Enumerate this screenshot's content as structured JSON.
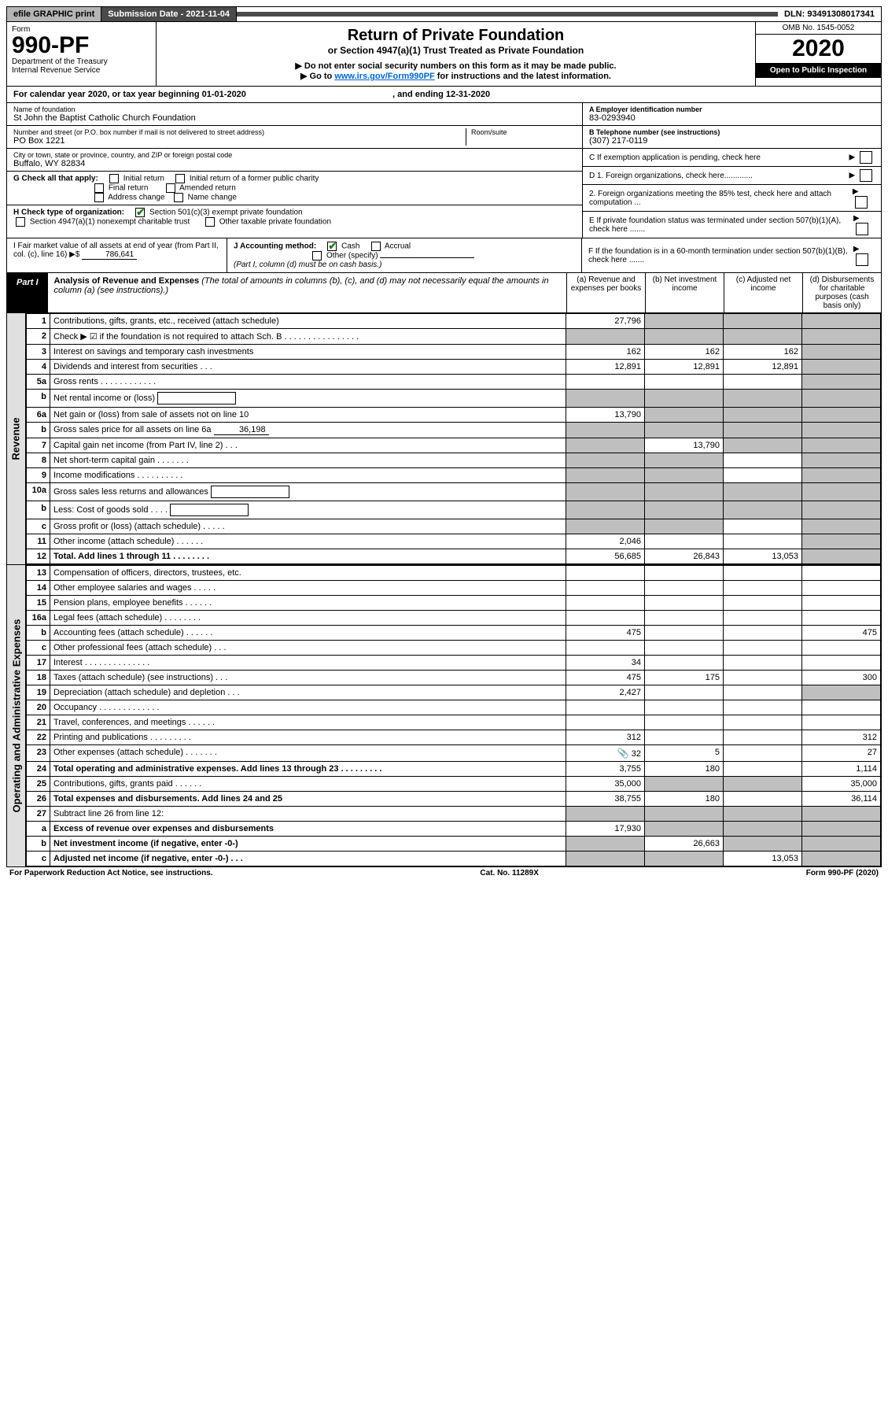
{
  "top": {
    "efile": "efile GRAPHIC print",
    "sub_date_label": "Submission Date - 2021-11-04",
    "dln": "DLN: 93491308017341"
  },
  "header": {
    "form_word": "Form",
    "form_no": "990-PF",
    "dept": "Department of the Treasury",
    "irs": "Internal Revenue Service",
    "title": "Return of Private Foundation",
    "subtitle": "or Section 4947(a)(1) Trust Treated as Private Foundation",
    "note1": "▶ Do not enter social security numbers on this form as it may be made public.",
    "note2_pre": "▶ Go to ",
    "note2_link": "www.irs.gov/Form990PF",
    "note2_post": " for instructions and the latest information.",
    "omb": "OMB No. 1545-0052",
    "year": "2020",
    "open": "Open to Public Inspection"
  },
  "cal": {
    "text": "For calendar year 2020, or tax year beginning 01-01-2020",
    "ending": ", and ending 12-31-2020"
  },
  "meta": {
    "name_label": "Name of foundation",
    "name": "St John the Baptist Catholic Church Foundation",
    "addr_label": "Number and street (or P.O. box number if mail is not delivered to street address)",
    "addr": "PO Box 1221",
    "room_label": "Room/suite",
    "city_label": "City or town, state or province, country, and ZIP or foreign postal code",
    "city": "Buffalo, WY  82834",
    "ein_label": "A Employer identification number",
    "ein": "83-0293940",
    "tel_label": "B Telephone number (see instructions)",
    "tel": "(307) 217-0119",
    "c_label": "C If exemption application is pending, check here",
    "d1": "D 1. Foreign organizations, check here.............",
    "d2": "2. Foreign organizations meeting the 85% test, check here and attach computation ...",
    "e": "E  If private foundation status was terminated under section 507(b)(1)(A), check here .......",
    "f": "F  If the foundation is in a 60-month termination under section 507(b)(1)(B), check here .......",
    "g_label": "G Check all that apply:",
    "g_opts": [
      "Initial return",
      "Initial return of a former public charity",
      "Final return",
      "Amended return",
      "Address change",
      "Name change"
    ],
    "h_label": "H Check type of organization:",
    "h_opts": [
      "Section 501(c)(3) exempt private foundation",
      "Section 4947(a)(1) nonexempt charitable trust",
      "Other taxable private foundation"
    ],
    "i_label": "I Fair market value of all assets at end of year (from Part II, col. (c), line 16) ▶$",
    "i_val": "786,641",
    "j_label": "J Accounting method:",
    "j_cash": "Cash",
    "j_accr": "Accrual",
    "j_other": "Other (specify)",
    "j_note": "(Part I, column (d) must be on cash basis.)"
  },
  "part1": {
    "label": "Part I",
    "title_bold": "Analysis of Revenue and Expenses",
    "title_rest": " (The total of amounts in columns (b), (c), and (d) may not necessarily equal the amounts in column (a) (see instructions).)",
    "cols": [
      "(a)  Revenue and expenses per books",
      "(b)  Net investment income",
      "(c)  Adjusted net income",
      "(d)  Disbursements for charitable purposes (cash basis only)"
    ],
    "side_rev": "Revenue",
    "side_exp": "Operating and Administrative Expenses",
    "rows_rev": [
      {
        "ln": "1",
        "desc": "Contributions, gifts, grants, etc., received (attach schedule)",
        "a": "27,796",
        "b": "",
        "c": "",
        "d": "",
        "shade": [
          "b",
          "c",
          "d"
        ]
      },
      {
        "ln": "2",
        "desc": "Check ▶ ☑ if the foundation is not required to attach Sch. B    .  .  .  .  .  .  .  .  .  .  .  .  .  .  .  .",
        "a": "",
        "b": "",
        "c": "",
        "d": "",
        "shade": [
          "a",
          "b",
          "c",
          "d"
        ]
      },
      {
        "ln": "3",
        "desc": "Interest on savings and temporary cash investments",
        "a": "162",
        "b": "162",
        "c": "162",
        "d": "",
        "shade": [
          "d"
        ]
      },
      {
        "ln": "4",
        "desc": "Dividends and interest from securities    .   .   .",
        "a": "12,891",
        "b": "12,891",
        "c": "12,891",
        "d": "",
        "shade": [
          "d"
        ]
      },
      {
        "ln": "5a",
        "desc": "Gross rents    .   .   .   .   .   .   .   .   .   .   .   .",
        "a": "",
        "b": "",
        "c": "",
        "d": "",
        "shade": [
          "d"
        ]
      },
      {
        "ln": "b",
        "desc": "Net rental income or (loss)",
        "a": "",
        "b": "",
        "c": "",
        "d": "",
        "shade": [
          "a",
          "b",
          "c",
          "d"
        ],
        "box": true
      },
      {
        "ln": "6a",
        "desc": "Net gain or (loss) from sale of assets not on line 10",
        "a": "13,790",
        "b": "",
        "c": "",
        "d": "",
        "shade": [
          "b",
          "c",
          "d"
        ]
      },
      {
        "ln": "b",
        "desc": "Gross sales price for all assets on line 6a",
        "a": "",
        "b": "",
        "c": "",
        "d": "",
        "shade": [
          "a",
          "b",
          "c",
          "d"
        ],
        "inline_val": "36,198"
      },
      {
        "ln": "7",
        "desc": "Capital gain net income (from Part IV, line 2)   .   .   .",
        "a": "",
        "b": "13,790",
        "c": "",
        "d": "",
        "shade": [
          "a",
          "c",
          "d"
        ]
      },
      {
        "ln": "8",
        "desc": "Net short-term capital gain   .   .   .   .   .   .   .",
        "a": "",
        "b": "",
        "c": "",
        "d": "",
        "shade": [
          "a",
          "b",
          "d"
        ]
      },
      {
        "ln": "9",
        "desc": "Income modifications  .   .   .   .   .   .   .   .   .   .",
        "a": "",
        "b": "",
        "c": "",
        "d": "",
        "shade": [
          "a",
          "b",
          "d"
        ]
      },
      {
        "ln": "10a",
        "desc": "Gross sales less returns and allowances",
        "a": "",
        "b": "",
        "c": "",
        "d": "",
        "shade": [
          "a",
          "b",
          "c",
          "d"
        ],
        "box": true
      },
      {
        "ln": "b",
        "desc": "Less: Cost of goods sold    .   .   .   .",
        "a": "",
        "b": "",
        "c": "",
        "d": "",
        "shade": [
          "a",
          "b",
          "c",
          "d"
        ],
        "box": true
      },
      {
        "ln": "c",
        "desc": "Gross profit or (loss) (attach schedule)    .   .   .   .   .",
        "a": "",
        "b": "",
        "c": "",
        "d": "",
        "shade": [
          "a",
          "b",
          "d"
        ]
      },
      {
        "ln": "11",
        "desc": "Other income (attach schedule)    .   .   .   .   .   .",
        "a": "2,046",
        "b": "",
        "c": "",
        "d": "",
        "shade": [
          "d"
        ]
      },
      {
        "ln": "12",
        "desc": "Total. Add lines 1 through 11   .   .   .   .   .   .   .   .",
        "a": "56,685",
        "b": "26,843",
        "c": "13,053",
        "d": "",
        "shade": [
          "d"
        ],
        "bold": true
      }
    ],
    "rows_exp": [
      {
        "ln": "13",
        "desc": "Compensation of officers, directors, trustees, etc.",
        "a": "",
        "b": "",
        "c": "",
        "d": ""
      },
      {
        "ln": "14",
        "desc": "Other employee salaries and wages   .   .   .   .   .",
        "a": "",
        "b": "",
        "c": "",
        "d": ""
      },
      {
        "ln": "15",
        "desc": "Pension plans, employee benefits  .   .   .   .   .   .",
        "a": "",
        "b": "",
        "c": "",
        "d": ""
      },
      {
        "ln": "16a",
        "desc": "Legal fees (attach schedule)  .   .   .   .   .   .   .   .",
        "a": "",
        "b": "",
        "c": "",
        "d": ""
      },
      {
        "ln": "b",
        "desc": "Accounting fees (attach schedule)  .   .   .   .   .   .",
        "a": "475",
        "b": "",
        "c": "",
        "d": "475"
      },
      {
        "ln": "c",
        "desc": "Other professional fees (attach schedule)    .   .   .",
        "a": "",
        "b": "",
        "c": "",
        "d": ""
      },
      {
        "ln": "17",
        "desc": "Interest  .   .   .   .   .   .   .   .   .   .   .   .   .   .",
        "a": "34",
        "b": "",
        "c": "",
        "d": ""
      },
      {
        "ln": "18",
        "desc": "Taxes (attach schedule) (see instructions)    .   .   .",
        "a": "475",
        "b": "175",
        "c": "",
        "d": "300"
      },
      {
        "ln": "19",
        "desc": "Depreciation (attach schedule) and depletion    .   .   .",
        "a": "2,427",
        "b": "",
        "c": "",
        "d": "",
        "shade": [
          "d"
        ]
      },
      {
        "ln": "20",
        "desc": "Occupancy  .   .   .   .   .   .   .   .   .   .   .   .   .",
        "a": "",
        "b": "",
        "c": "",
        "d": ""
      },
      {
        "ln": "21",
        "desc": "Travel, conferences, and meetings  .   .   .   .   .   .",
        "a": "",
        "b": "",
        "c": "",
        "d": ""
      },
      {
        "ln": "22",
        "desc": "Printing and publications  .   .   .   .   .   .   .   .   .",
        "a": "312",
        "b": "",
        "c": "",
        "d": "312"
      },
      {
        "ln": "23",
        "desc": "Other expenses (attach schedule)  .   .   .   .   .   .   .",
        "a": "32",
        "b": "5",
        "c": "",
        "d": "27",
        "clip": true
      },
      {
        "ln": "24",
        "desc": "Total operating and administrative expenses. Add lines 13 through 23   .   .   .   .   .   .   .   .   .",
        "a": "3,755",
        "b": "180",
        "c": "",
        "d": "1,114",
        "bold": true
      },
      {
        "ln": "25",
        "desc": "Contributions, gifts, grants paid     .   .   .   .   .   .",
        "a": "35,000",
        "b": "",
        "c": "",
        "d": "35,000",
        "shade": [
          "b",
          "c"
        ]
      },
      {
        "ln": "26",
        "desc": "Total expenses and disbursements. Add lines 24 and 25",
        "a": "38,755",
        "b": "180",
        "c": "",
        "d": "36,114",
        "bold": true
      },
      {
        "ln": "27",
        "desc": "Subtract line 26 from line 12:",
        "a": "",
        "b": "",
        "c": "",
        "d": "",
        "shade": [
          "a",
          "b",
          "c",
          "d"
        ]
      },
      {
        "ln": "a",
        "desc": "Excess of revenue over expenses and disbursements",
        "a": "17,930",
        "b": "",
        "c": "",
        "d": "",
        "bold": true,
        "shade": [
          "b",
          "c",
          "d"
        ]
      },
      {
        "ln": "b",
        "desc": "Net investment income (if negative, enter -0-)",
        "a": "",
        "b": "26,663",
        "c": "",
        "d": "",
        "bold": true,
        "shade": [
          "a",
          "c",
          "d"
        ]
      },
      {
        "ln": "c",
        "desc": "Adjusted net income (if negative, enter -0-)    .   .   .",
        "a": "",
        "b": "",
        "c": "13,053",
        "d": "",
        "bold": true,
        "shade": [
          "a",
          "b",
          "d"
        ]
      }
    ]
  },
  "footer": {
    "left": "For Paperwork Reduction Act Notice, see instructions.",
    "mid": "Cat. No. 11289X",
    "right": "Form 990-PF (2020)"
  },
  "colors": {
    "shade": "#bfbfbf",
    "check": "#1a7a1a",
    "link": "#0066cc"
  }
}
